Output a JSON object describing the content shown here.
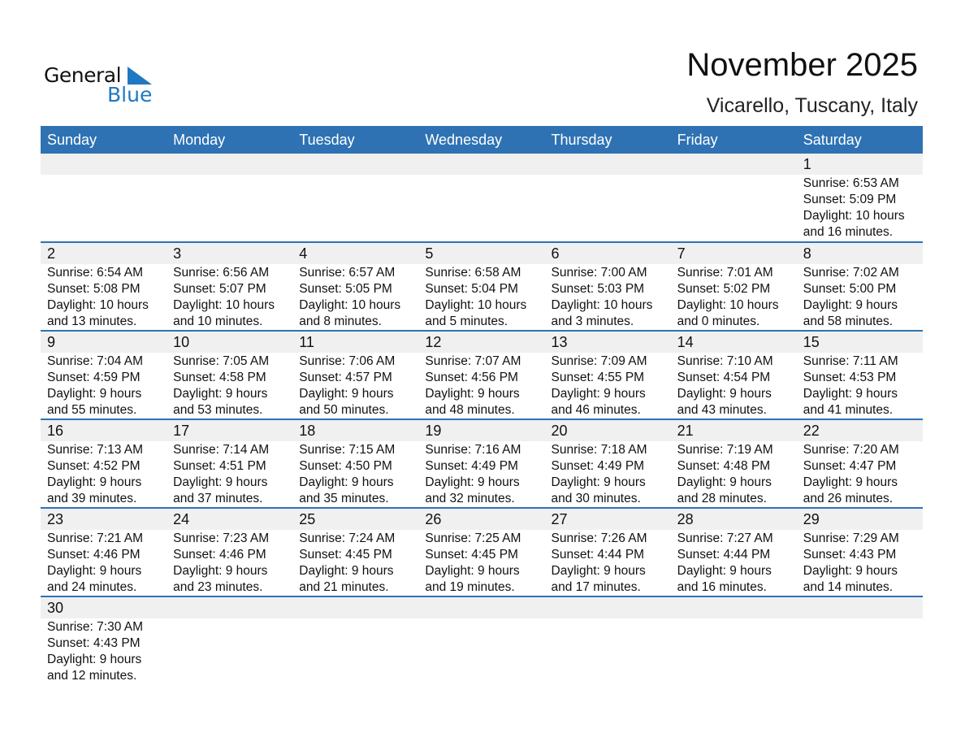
{
  "logo": {
    "text1": "General",
    "text2": "Blue",
    "color": "#1f78c1"
  },
  "title": "November 2025",
  "location": "Vicarello, Tuscany, Italy",
  "colors": {
    "header": "#2e72b3",
    "band": "#f0f0f0"
  },
  "weekdays": [
    "Sunday",
    "Monday",
    "Tuesday",
    "Wednesday",
    "Thursday",
    "Friday",
    "Saturday"
  ],
  "weeks": [
    [
      null,
      null,
      null,
      null,
      null,
      null,
      {
        "day": "1",
        "sunrise": "Sunrise: 6:53 AM",
        "sunset": "Sunset: 5:09 PM",
        "daylight": "Daylight: 10 hours",
        "minutes": "and 16 minutes."
      }
    ],
    [
      {
        "day": "2",
        "sunrise": "Sunrise: 6:54 AM",
        "sunset": "Sunset: 5:08 PM",
        "daylight": "Daylight: 10 hours",
        "minutes": "and 13 minutes."
      },
      {
        "day": "3",
        "sunrise": "Sunrise: 6:56 AM",
        "sunset": "Sunset: 5:07 PM",
        "daylight": "Daylight: 10 hours",
        "minutes": "and 10 minutes."
      },
      {
        "day": "4",
        "sunrise": "Sunrise: 6:57 AM",
        "sunset": "Sunset: 5:05 PM",
        "daylight": "Daylight: 10 hours",
        "minutes": "and 8 minutes."
      },
      {
        "day": "5",
        "sunrise": "Sunrise: 6:58 AM",
        "sunset": "Sunset: 5:04 PM",
        "daylight": "Daylight: 10 hours",
        "minutes": "and 5 minutes."
      },
      {
        "day": "6",
        "sunrise": "Sunrise: 7:00 AM",
        "sunset": "Sunset: 5:03 PM",
        "daylight": "Daylight: 10 hours",
        "minutes": "and 3 minutes."
      },
      {
        "day": "7",
        "sunrise": "Sunrise: 7:01 AM",
        "sunset": "Sunset: 5:02 PM",
        "daylight": "Daylight: 10 hours",
        "minutes": "and 0 minutes."
      },
      {
        "day": "8",
        "sunrise": "Sunrise: 7:02 AM",
        "sunset": "Sunset: 5:00 PM",
        "daylight": "Daylight: 9 hours",
        "minutes": "and 58 minutes."
      }
    ],
    [
      {
        "day": "9",
        "sunrise": "Sunrise: 7:04 AM",
        "sunset": "Sunset: 4:59 PM",
        "daylight": "Daylight: 9 hours",
        "minutes": "and 55 minutes."
      },
      {
        "day": "10",
        "sunrise": "Sunrise: 7:05 AM",
        "sunset": "Sunset: 4:58 PM",
        "daylight": "Daylight: 9 hours",
        "minutes": "and 53 minutes."
      },
      {
        "day": "11",
        "sunrise": "Sunrise: 7:06 AM",
        "sunset": "Sunset: 4:57 PM",
        "daylight": "Daylight: 9 hours",
        "minutes": "and 50 minutes."
      },
      {
        "day": "12",
        "sunrise": "Sunrise: 7:07 AM",
        "sunset": "Sunset: 4:56 PM",
        "daylight": "Daylight: 9 hours",
        "minutes": "and 48 minutes."
      },
      {
        "day": "13",
        "sunrise": "Sunrise: 7:09 AM",
        "sunset": "Sunset: 4:55 PM",
        "daylight": "Daylight: 9 hours",
        "minutes": "and 46 minutes."
      },
      {
        "day": "14",
        "sunrise": "Sunrise: 7:10 AM",
        "sunset": "Sunset: 4:54 PM",
        "daylight": "Daylight: 9 hours",
        "minutes": "and 43 minutes."
      },
      {
        "day": "15",
        "sunrise": "Sunrise: 7:11 AM",
        "sunset": "Sunset: 4:53 PM",
        "daylight": "Daylight: 9 hours",
        "minutes": "and 41 minutes."
      }
    ],
    [
      {
        "day": "16",
        "sunrise": "Sunrise: 7:13 AM",
        "sunset": "Sunset: 4:52 PM",
        "daylight": "Daylight: 9 hours",
        "minutes": "and 39 minutes."
      },
      {
        "day": "17",
        "sunrise": "Sunrise: 7:14 AM",
        "sunset": "Sunset: 4:51 PM",
        "daylight": "Daylight: 9 hours",
        "minutes": "and 37 minutes."
      },
      {
        "day": "18",
        "sunrise": "Sunrise: 7:15 AM",
        "sunset": "Sunset: 4:50 PM",
        "daylight": "Daylight: 9 hours",
        "minutes": "and 35 minutes."
      },
      {
        "day": "19",
        "sunrise": "Sunrise: 7:16 AM",
        "sunset": "Sunset: 4:49 PM",
        "daylight": "Daylight: 9 hours",
        "minutes": "and 32 minutes."
      },
      {
        "day": "20",
        "sunrise": "Sunrise: 7:18 AM",
        "sunset": "Sunset: 4:49 PM",
        "daylight": "Daylight: 9 hours",
        "minutes": "and 30 minutes."
      },
      {
        "day": "21",
        "sunrise": "Sunrise: 7:19 AM",
        "sunset": "Sunset: 4:48 PM",
        "daylight": "Daylight: 9 hours",
        "minutes": "and 28 minutes."
      },
      {
        "day": "22",
        "sunrise": "Sunrise: 7:20 AM",
        "sunset": "Sunset: 4:47 PM",
        "daylight": "Daylight: 9 hours",
        "minutes": "and 26 minutes."
      }
    ],
    [
      {
        "day": "23",
        "sunrise": "Sunrise: 7:21 AM",
        "sunset": "Sunset: 4:46 PM",
        "daylight": "Daylight: 9 hours",
        "minutes": "and 24 minutes."
      },
      {
        "day": "24",
        "sunrise": "Sunrise: 7:23 AM",
        "sunset": "Sunset: 4:46 PM",
        "daylight": "Daylight: 9 hours",
        "minutes": "and 23 minutes."
      },
      {
        "day": "25",
        "sunrise": "Sunrise: 7:24 AM",
        "sunset": "Sunset: 4:45 PM",
        "daylight": "Daylight: 9 hours",
        "minutes": "and 21 minutes."
      },
      {
        "day": "26",
        "sunrise": "Sunrise: 7:25 AM",
        "sunset": "Sunset: 4:45 PM",
        "daylight": "Daylight: 9 hours",
        "minutes": "and 19 minutes."
      },
      {
        "day": "27",
        "sunrise": "Sunrise: 7:26 AM",
        "sunset": "Sunset: 4:44 PM",
        "daylight": "Daylight: 9 hours",
        "minutes": "and 17 minutes."
      },
      {
        "day": "28",
        "sunrise": "Sunrise: 7:27 AM",
        "sunset": "Sunset: 4:44 PM",
        "daylight": "Daylight: 9 hours",
        "minutes": "and 16 minutes."
      },
      {
        "day": "29",
        "sunrise": "Sunrise: 7:29 AM",
        "sunset": "Sunset: 4:43 PM",
        "daylight": "Daylight: 9 hours",
        "minutes": "and 14 minutes."
      }
    ],
    [
      {
        "day": "30",
        "sunrise": "Sunrise: 7:30 AM",
        "sunset": "Sunset: 4:43 PM",
        "daylight": "Daylight: 9 hours",
        "minutes": "and 12 minutes."
      },
      null,
      null,
      null,
      null,
      null,
      null
    ]
  ]
}
